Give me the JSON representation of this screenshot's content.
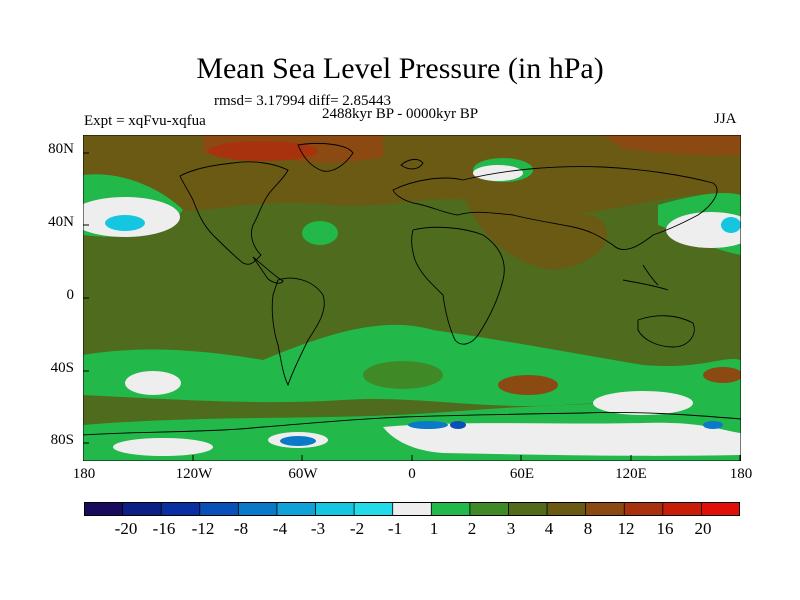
{
  "title": "Mean Sea Level Pressure (in hPa)",
  "stats": "rmsd= 3.17994 diff= 2.85443",
  "period": "2488kyr BP - 0000kyr BP",
  "experiment": "Expt = xqFvu-xqfua",
  "season": "JJA",
  "lat_labels": [
    "80N",
    "40N",
    "0",
    "40S",
    "80S"
  ],
  "lon_labels": [
    "180",
    "120W",
    "60W",
    "0",
    "60E",
    "120E",
    "180"
  ],
  "legend": {
    "labels": [
      "-20",
      "-16",
      "-12",
      "-8",
      "-4",
      "-3",
      "-2",
      "-1",
      "1",
      "2",
      "3",
      "4",
      "8",
      "12",
      "16",
      "20"
    ],
    "colors": [
      "#1a0a5e",
      "#0c1f86",
      "#0a2fa2",
      "#0950b8",
      "#0a79c8",
      "#0fa2d6",
      "#14c6e0",
      "#22dbe8",
      "#eeeeee",
      "#22b84a",
      "#3f8a26",
      "#526a1c",
      "#6b5a14",
      "#8a4a12",
      "#a8320e",
      "#c81e08",
      "#e01008"
    ]
  },
  "map": {
    "background_color": "#4f6b1e",
    "coastline_color": "#000000"
  }
}
